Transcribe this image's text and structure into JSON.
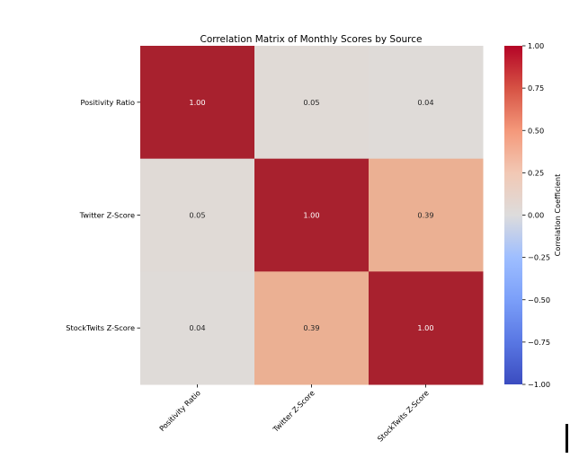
{
  "chart_data": {
    "type": "heatmap",
    "title": "Correlation Matrix of Monthly Scores by Source",
    "xlabel": "",
    "ylabel": "",
    "x_categories": [
      "Positivity Ratio",
      "Twitter Z-Score",
      "StockTwits Z-Score"
    ],
    "y_categories": [
      "Positivity Ratio",
      "Twitter Z-Score",
      "StockTwits Z-Score"
    ],
    "values": [
      [
        1.0,
        0.05,
        0.04
      ],
      [
        0.05,
        1.0,
        0.39
      ],
      [
        0.04,
        0.39,
        1.0
      ]
    ],
    "value_labels": [
      [
        "1.00",
        "0.05",
        "0.04"
      ],
      [
        "0.05",
        "1.00",
        "0.39"
      ],
      [
        "0.04",
        "0.39",
        "1.00"
      ]
    ],
    "colormap": "coolwarm",
    "vmin": -1.0,
    "vmax": 1.0,
    "colorbar": {
      "label": "Correlation Coefficient",
      "ticks": [
        1.0,
        0.75,
        0.5,
        0.25,
        0.0,
        -0.25,
        -0.5,
        -0.75,
        -1.0
      ],
      "tick_labels": [
        "1.00",
        "0.75",
        "0.50",
        "0.25",
        "0.00",
        "−0.25",
        "−0.50",
        "−0.75",
        "−1.00"
      ],
      "placement": "right"
    },
    "colors": {
      "high": "#a8212e",
      "mid": "#dddcdc",
      "low": "#3b4cc0",
      "cell_0_05": "#e0dad6",
      "cell_0_39": "#ebb093"
    }
  }
}
